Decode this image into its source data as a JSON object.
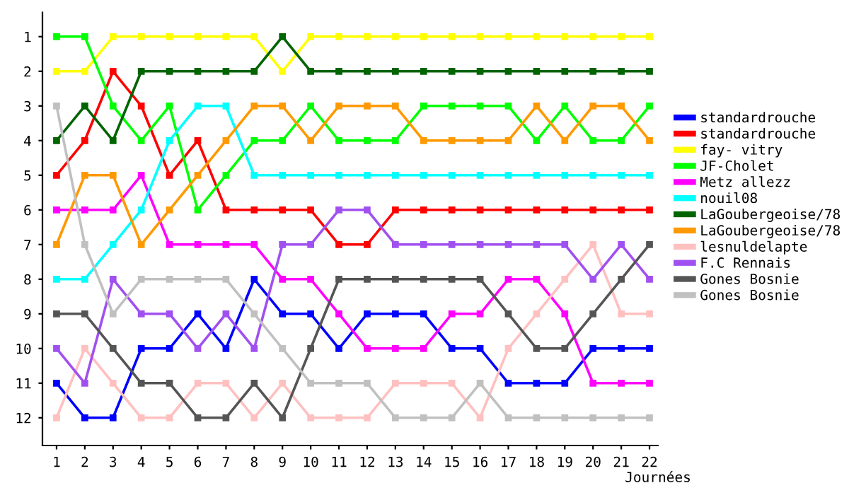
{
  "chart_data": {
    "type": "line",
    "xlabel": "Journées",
    "x": [
      1,
      2,
      3,
      4,
      5,
      6,
      7,
      8,
      9,
      10,
      11,
      12,
      13,
      14,
      15,
      16,
      17,
      18,
      19,
      20,
      21,
      22
    ],
    "xlim": [
      0.5,
      22.3
    ],
    "xticks": [
      1,
      2,
      3,
      4,
      5,
      6,
      7,
      8,
      9,
      10,
      11,
      12,
      13,
      14,
      15,
      16,
      17,
      18,
      19,
      20,
      21,
      22
    ],
    "ylim": [
      12.8,
      0.3
    ],
    "yticks": [
      1,
      2,
      3,
      4,
      5,
      6,
      7,
      8,
      9,
      10,
      11,
      12
    ],
    "marker": "square",
    "line_style": "solid",
    "grid": false,
    "legend": "right",
    "series": [
      {
        "name": "standardrouche",
        "color": "#0000ff",
        "values": [
          11,
          12,
          12,
          10,
          10,
          9,
          10,
          8,
          9,
          9,
          10,
          9,
          9,
          9,
          10,
          10,
          11,
          11,
          11,
          10,
          10,
          10
        ]
      },
      {
        "name": "standardrouche",
        "color": "#ff0000",
        "values": [
          5,
          4,
          2,
          3,
          5,
          4,
          6,
          6,
          6,
          6,
          7,
          7,
          6,
          6,
          6,
          6,
          6,
          6,
          6,
          6,
          6,
          6
        ]
      },
      {
        "name": "fay- vitry",
        "color": "#ffff00",
        "values": [
          2,
          2,
          1,
          1,
          1,
          1,
          1,
          1,
          2,
          1,
          1,
          1,
          1,
          1,
          1,
          1,
          1,
          1,
          1,
          1,
          1,
          1
        ]
      },
      {
        "name": "JF-Cholet",
        "color": "#00ff00",
        "values": [
          1,
          1,
          3,
          4,
          3,
          6,
          5,
          4,
          4,
          3,
          4,
          4,
          4,
          3,
          3,
          3,
          3,
          4,
          3,
          4,
          4,
          3
        ]
      },
      {
        "name": "Metz allezz",
        "color": "#ff00ff",
        "values": [
          6,
          6,
          6,
          5,
          7,
          7,
          7,
          7,
          8,
          8,
          9,
          10,
          10,
          10,
          9,
          9,
          8,
          8,
          9,
          11,
          11,
          11
        ]
      },
      {
        "name": "nouil08",
        "color": "#00ffff",
        "values": [
          8,
          8,
          7,
          6,
          4,
          3,
          3,
          5,
          5,
          5,
          5,
          5,
          5,
          5,
          5,
          5,
          5,
          5,
          5,
          5,
          5,
          5
        ]
      },
      {
        "name": "LaGoubergeoise/78",
        "color": "#006400",
        "values": [
          4,
          3,
          4,
          2,
          2,
          2,
          2,
          2,
          1,
          2,
          2,
          2,
          2,
          2,
          2,
          2,
          2,
          2,
          2,
          2,
          2,
          2
        ]
      },
      {
        "name": "LaGoubergeoise/78",
        "color": "#ff9900",
        "values": [
          7,
          5,
          5,
          7,
          6,
          5,
          4,
          3,
          3,
          4,
          3,
          3,
          3,
          4,
          4,
          4,
          4,
          3,
          4,
          3,
          3,
          4
        ]
      },
      {
        "name": "lesnuldelapte",
        "color": "#ffc0c0",
        "values": [
          12,
          10,
          11,
          12,
          12,
          11,
          11,
          12,
          11,
          12,
          12,
          12,
          11,
          11,
          11,
          12,
          10,
          9,
          8,
          7,
          9,
          9
        ]
      },
      {
        "name": "F.C Rennais",
        "color": "#a050f0",
        "values": [
          10,
          11,
          8,
          9,
          9,
          10,
          9,
          10,
          7,
          7,
          6,
          6,
          7,
          7,
          7,
          7,
          7,
          7,
          7,
          8,
          7,
          8
        ]
      },
      {
        "name": "Gones Bosnie",
        "color": "#555555",
        "values": [
          9,
          9,
          10,
          11,
          11,
          12,
          12,
          11,
          12,
          10,
          8,
          8,
          8,
          8,
          8,
          8,
          9,
          10,
          10,
          9,
          8,
          7
        ]
      },
      {
        "name": "Gones Bosnie",
        "color": "#c0c0c0",
        "values": [
          3,
          7,
          9,
          8,
          8,
          8,
          8,
          9,
          10,
          11,
          11,
          11,
          12,
          12,
          12,
          11,
          12,
          12,
          12,
          12,
          12,
          12
        ]
      }
    ]
  }
}
